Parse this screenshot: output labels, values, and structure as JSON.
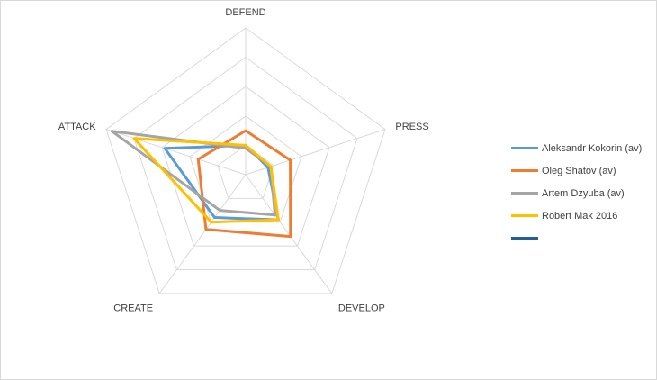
{
  "chart_data": {
    "type": "radar",
    "title": "",
    "axes": [
      "DEFEND",
      "PRESS",
      "DEVELOP",
      "CREATE",
      "ATTACK"
    ],
    "range": [
      0,
      5
    ],
    "rings": 5,
    "grid": true,
    "legend_position": "right",
    "series": [
      {
        "name": "Aleksandr Kokorin (av)",
        "color": "#5b9bd5",
        "values": [
          1.0,
          0.8,
          1.9,
          1.8,
          2.9
        ]
      },
      {
        "name": "Oleg Shatov (av)",
        "color": "#ed7d31",
        "values": [
          1.5,
          1.6,
          2.6,
          2.3,
          1.7
        ]
      },
      {
        "name": "Artem Dzyuba (av)",
        "color": "#a5a5a5",
        "values": [
          0.9,
          0.9,
          1.7,
          1.5,
          4.8
        ]
      },
      {
        "name": "Robert Mak 2016",
        "color": "#ffc000",
        "values": [
          1.0,
          0.9,
          1.9,
          2.0,
          4.0
        ]
      },
      {
        "name": "",
        "color": "#255e91",
        "values": []
      }
    ]
  }
}
